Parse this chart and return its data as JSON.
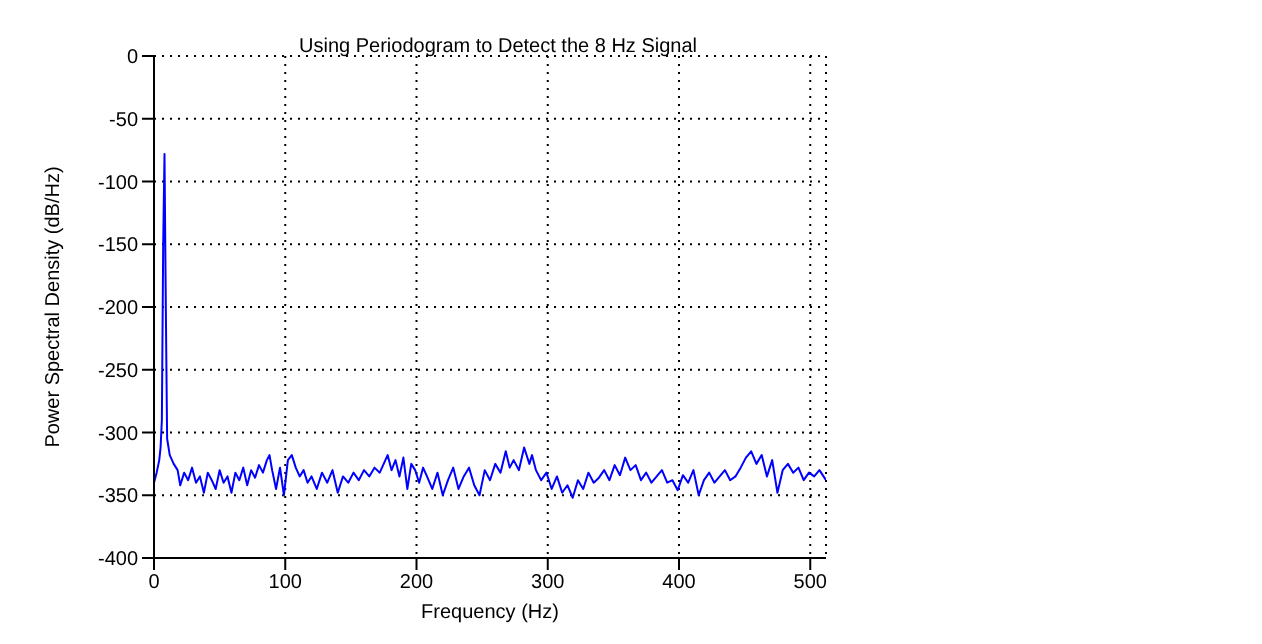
{
  "chart_data": {
    "type": "line",
    "title": "Using Periodogram to Detect the 8 Hz Signal",
    "xlabel": "Frequency (Hz)",
    "ylabel": "Power Spectral Density (dB/Hz)",
    "x": [
      0,
      2,
      4,
      5,
      6,
      7,
      8,
      9,
      10,
      12,
      15,
      18,
      20,
      23,
      26,
      29,
      32,
      35,
      38,
      41,
      44,
      47,
      50,
      53,
      56,
      59,
      62,
      65,
      68,
      71,
      74,
      77,
      80,
      83,
      86,
      88,
      90,
      93,
      96,
      99,
      102,
      105,
      108,
      111,
      114,
      117,
      120,
      124,
      128,
      132,
      136,
      140,
      144,
      148,
      152,
      156,
      160,
      164,
      168,
      172,
      175,
      178,
      181,
      184,
      187,
      190,
      193,
      196,
      199,
      202,
      205,
      208,
      212,
      216,
      220,
      224,
      228,
      232,
      236,
      240,
      244,
      248,
      252,
      256,
      260,
      264,
      268,
      271,
      274,
      278,
      282,
      286,
      288,
      291,
      295,
      299,
      303,
      307,
      311,
      315,
      319,
      323,
      327,
      331,
      335,
      339,
      343,
      347,
      351,
      355,
      359,
      363,
      367,
      371,
      375,
      379,
      383,
      387,
      391,
      395,
      399,
      403,
      407,
      411,
      415,
      419,
      423,
      427,
      431,
      435,
      439,
      443,
      447,
      451,
      455,
      459,
      463,
      467,
      471,
      475,
      479,
      483,
      487,
      491,
      495,
      499,
      503,
      507,
      512
    ],
    "series": [
      {
        "color": "#0000ff",
        "values": [
          -340,
          -332,
          -322,
          -312,
          -290,
          -150,
          -78,
          -200,
          -305,
          -318,
          -325,
          -330,
          -342,
          -332,
          -338,
          -328,
          -340,
          -335,
          -348,
          -332,
          -338,
          -345,
          -330,
          -340,
          -335,
          -348,
          -332,
          -338,
          -328,
          -342,
          -330,
          -336,
          -326,
          -332,
          -322,
          -318,
          -330,
          -345,
          -328,
          -350,
          -322,
          -318,
          -328,
          -335,
          -330,
          -340,
          -335,
          -345,
          -332,
          -340,
          -330,
          -348,
          -335,
          -340,
          -332,
          -338,
          -330,
          -335,
          -328,
          -332,
          -325,
          -318,
          -330,
          -322,
          -335,
          -320,
          -345,
          -325,
          -330,
          -340,
          -328,
          -335,
          -345,
          -332,
          -350,
          -338,
          -328,
          -345,
          -335,
          -328,
          -342,
          -350,
          -330,
          -338,
          -325,
          -332,
          -315,
          -328,
          -322,
          -330,
          -312,
          -325,
          -318,
          -330,
          -338,
          -332,
          -345,
          -335,
          -348,
          -342,
          -352,
          -338,
          -345,
          -332,
          -340,
          -336,
          -330,
          -338,
          -326,
          -334,
          -320,
          -330,
          -326,
          -338,
          -332,
          -340,
          -335,
          -330,
          -340,
          -338,
          -346,
          -334,
          -340,
          -330,
          -350,
          -338,
          -332,
          -340,
          -335,
          -330,
          -338,
          -335,
          -328,
          -320,
          -315,
          -325,
          -318,
          -335,
          -322,
          -348,
          -330,
          -325,
          -332,
          -328,
          -338,
          -332,
          -335,
          -330,
          -338
        ]
      }
    ],
    "xlim": [
      0,
      512
    ],
    "xticks": [
      0,
      100,
      200,
      300,
      400,
      500
    ],
    "ylim": [
      -400,
      0
    ],
    "yticks": [
      -400,
      -350,
      -300,
      -250,
      -200,
      -150,
      -100,
      -50,
      0
    ],
    "grid": true,
    "line_style": "solid",
    "marker": "none"
  }
}
